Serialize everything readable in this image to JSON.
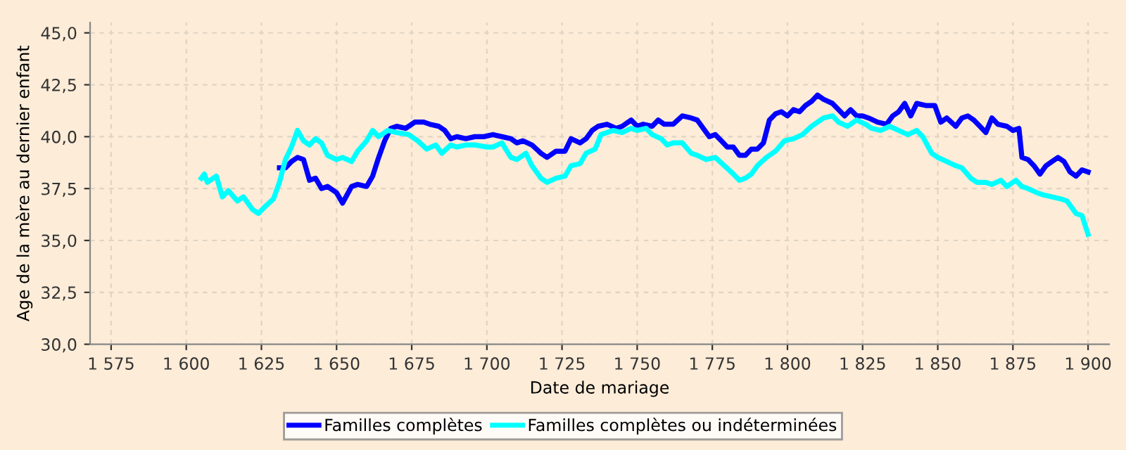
{
  "chart_data": {
    "type": "line",
    "xlabel": "Date de mariage",
    "ylabel": "Age de la mère au dernier enfant",
    "xlim": [
      1568,
      1907
    ],
    "ylim": [
      30,
      45.5
    ],
    "xticks": [
      {
        "value": 1575,
        "label": "1 575"
      },
      {
        "value": 1600,
        "label": "1 600"
      },
      {
        "value": 1625,
        "label": "1 625"
      },
      {
        "value": 1650,
        "label": "1 650"
      },
      {
        "value": 1675,
        "label": "1 675"
      },
      {
        "value": 1700,
        "label": "1 700"
      },
      {
        "value": 1725,
        "label": "1 725"
      },
      {
        "value": 1750,
        "label": "1 750"
      },
      {
        "value": 1775,
        "label": "1 775"
      },
      {
        "value": 1800,
        "label": "1 800"
      },
      {
        "value": 1825,
        "label": "1 825"
      },
      {
        "value": 1850,
        "label": "1 850"
      },
      {
        "value": 1875,
        "label": "1 875"
      },
      {
        "value": 1900,
        "label": "1 900"
      }
    ],
    "yticks": [
      {
        "value": 30,
        "label": "30,0"
      },
      {
        "value": 32.5,
        "label": "32,5"
      },
      {
        "value": 35,
        "label": "35,0"
      },
      {
        "value": 37.5,
        "label": "37,5"
      },
      {
        "value": 40,
        "label": "40,0"
      },
      {
        "value": 42.5,
        "label": "42,5"
      },
      {
        "value": 45,
        "label": "45,0"
      }
    ],
    "grid": true,
    "legend": "bottom",
    "marker": "none",
    "line_style": "solid",
    "series": [
      {
        "name": "Familles complètes",
        "color": "#0000ff",
        "x": [
          1631,
          1633,
          1635,
          1637,
          1639,
          1641,
          1643,
          1645,
          1647,
          1650,
          1652,
          1655,
          1657,
          1660,
          1662,
          1664,
          1666,
          1668,
          1670,
          1673,
          1676,
          1679,
          1681,
          1684,
          1686,
          1688,
          1690,
          1693,
          1696,
          1699,
          1702,
          1705,
          1708,
          1710,
          1712,
          1715,
          1718,
          1720,
          1723,
          1726,
          1728,
          1731,
          1733,
          1735,
          1737,
          1740,
          1743,
          1745,
          1748,
          1750,
          1752,
          1755,
          1757,
          1759,
          1762,
          1765,
          1768,
          1770,
          1772,
          1774,
          1776,
          1778,
          1780,
          1782,
          1784,
          1786,
          1788,
          1790,
          1792,
          1794,
          1796,
          1798,
          1800,
          1802,
          1804,
          1806,
          1808,
          1810,
          1812,
          1815,
          1817,
          1819,
          1821,
          1823,
          1825,
          1827,
          1830,
          1833,
          1835,
          1837,
          1839,
          1841,
          1843,
          1846,
          1849,
          1851,
          1853,
          1856,
          1858,
          1860,
          1862,
          1864,
          1866,
          1868,
          1870,
          1873,
          1875,
          1877,
          1878,
          1880,
          1882,
          1884,
          1886,
          1888,
          1890,
          1892,
          1894,
          1896,
          1898,
          1900
        ],
        "values": [
          38.5,
          38.5,
          38.8,
          39.0,
          38.9,
          37.9,
          38.0,
          37.5,
          37.6,
          37.3,
          36.8,
          37.6,
          37.7,
          37.6,
          38.1,
          39.0,
          39.8,
          40.4,
          40.5,
          40.4,
          40.7,
          40.7,
          40.6,
          40.5,
          40.3,
          39.9,
          40.0,
          39.9,
          40.0,
          40.0,
          40.1,
          40.0,
          39.9,
          39.7,
          39.8,
          39.6,
          39.2,
          39.0,
          39.3,
          39.3,
          39.9,
          39.7,
          39.9,
          40.3,
          40.5,
          40.6,
          40.4,
          40.5,
          40.8,
          40.5,
          40.6,
          40.5,
          40.8,
          40.6,
          40.6,
          41.0,
          40.9,
          40.8,
          40.4,
          40.0,
          40.1,
          39.8,
          39.5,
          39.5,
          39.1,
          39.1,
          39.4,
          39.4,
          39.7,
          40.8,
          41.1,
          41.2,
          41.0,
          41.3,
          41.2,
          41.5,
          41.7,
          42.0,
          41.8,
          41.6,
          41.3,
          41.0,
          41.3,
          41.0,
          41.0,
          40.9,
          40.7,
          40.6,
          41.0,
          41.2,
          41.6,
          41.0,
          41.6,
          41.5,
          41.5,
          40.7,
          40.9,
          40.5,
          40.9,
          41.0,
          40.8,
          40.5,
          40.2,
          40.9,
          40.6,
          40.5,
          40.3,
          40.4,
          39.0,
          38.9,
          38.6,
          38.2,
          38.6,
          38.8,
          39.0,
          38.8,
          38.3,
          38.1,
          38.4,
          38.3
        ]
      },
      {
        "name": "Familles complètes ou indéterminées",
        "color": "#00ffff",
        "x": [
          1605,
          1606,
          1607,
          1610,
          1612,
          1614,
          1617,
          1619,
          1622,
          1624,
          1626,
          1629,
          1631,
          1633,
          1635,
          1637,
          1639,
          1641,
          1643,
          1645,
          1647,
          1650,
          1652,
          1655,
          1657,
          1660,
          1662,
          1664,
          1667,
          1670,
          1674,
          1677,
          1680,
          1683,
          1685,
          1688,
          1690,
          1693,
          1696,
          1700,
          1702,
          1705,
          1708,
          1710,
          1713,
          1715,
          1718,
          1720,
          1723,
          1726,
          1728,
          1731,
          1733,
          1736,
          1738,
          1742,
          1745,
          1748,
          1750,
          1753,
          1755,
          1758,
          1760,
          1762,
          1765,
          1768,
          1770,
          1773,
          1776,
          1779,
          1782,
          1784,
          1786,
          1788,
          1790,
          1793,
          1796,
          1799,
          1802,
          1805,
          1808,
          1812,
          1815,
          1817,
          1820,
          1823,
          1826,
          1828,
          1831,
          1834,
          1837,
          1840,
          1843,
          1845,
          1848,
          1850,
          1853,
          1856,
          1858,
          1861,
          1863,
          1866,
          1868,
          1871,
          1873,
          1876,
          1878,
          1880,
          1883,
          1885,
          1888,
          1891,
          1893,
          1896,
          1898,
          1900
        ],
        "values": [
          38.0,
          38.2,
          37.8,
          38.1,
          37.1,
          37.4,
          36.9,
          37.1,
          36.5,
          36.3,
          36.6,
          37.0,
          37.8,
          38.9,
          39.5,
          40.3,
          39.8,
          39.6,
          39.9,
          39.7,
          39.1,
          38.9,
          39.0,
          38.8,
          39.3,
          39.8,
          40.3,
          40.0,
          40.3,
          40.2,
          40.1,
          39.8,
          39.4,
          39.6,
          39.2,
          39.6,
          39.5,
          39.6,
          39.6,
          39.5,
          39.5,
          39.7,
          39.0,
          38.9,
          39.2,
          38.6,
          38.0,
          37.8,
          38.0,
          38.1,
          38.6,
          38.7,
          39.2,
          39.4,
          40.1,
          40.3,
          40.2,
          40.4,
          40.3,
          40.4,
          40.1,
          39.9,
          39.6,
          39.7,
          39.7,
          39.2,
          39.1,
          38.9,
          39.0,
          38.6,
          38.2,
          37.9,
          38.0,
          38.2,
          38.6,
          39.0,
          39.3,
          39.8,
          39.9,
          40.1,
          40.5,
          40.9,
          41.0,
          40.7,
          40.5,
          40.8,
          40.6,
          40.4,
          40.3,
          40.5,
          40.3,
          40.1,
          40.3,
          40.0,
          39.2,
          39.0,
          38.8,
          38.6,
          38.5,
          38.0,
          37.8,
          37.8,
          37.7,
          37.9,
          37.6,
          37.9,
          37.6,
          37.5,
          37.3,
          37.2,
          37.1,
          37.0,
          36.9,
          36.3,
          36.2,
          35.3
        ]
      }
    ]
  }
}
